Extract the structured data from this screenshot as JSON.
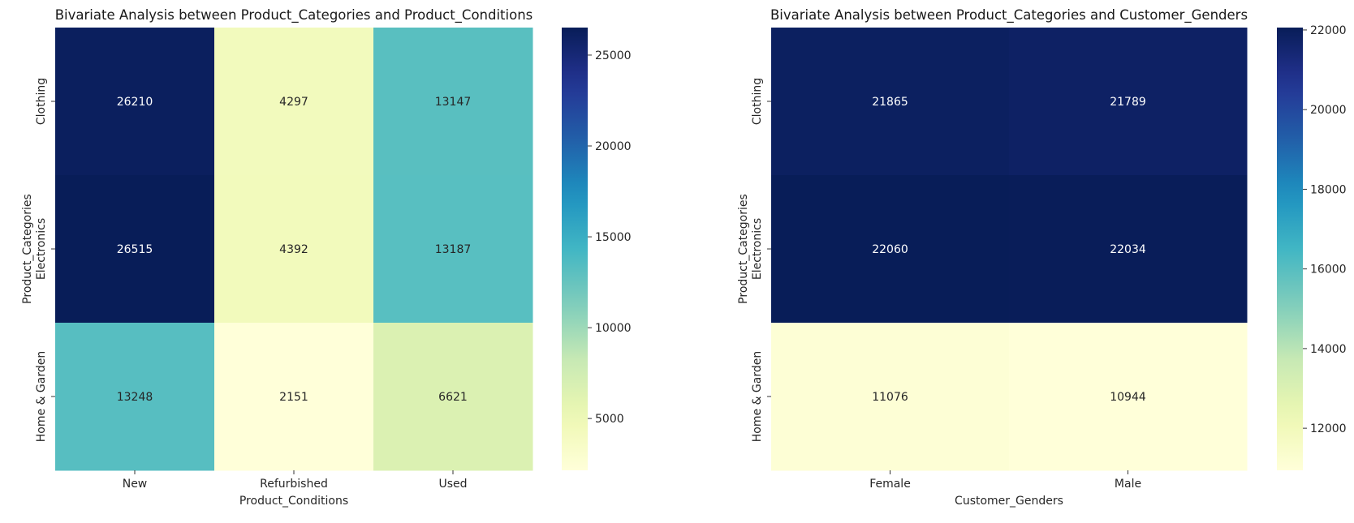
{
  "chart_data": [
    {
      "type": "heatmap",
      "title": "Bivariate Analysis between Product_Categories and Product_Conditions",
      "xlabel": "Product_Conditions",
      "ylabel": "Product_Categories",
      "x_categories": [
        "New",
        "Refurbished",
        "Used"
      ],
      "y_categories": [
        "Clothing",
        "Electronics",
        "Home & Garden"
      ],
      "values": [
        [
          26210,
          4297,
          13147
        ],
        [
          26515,
          4392,
          13187
        ],
        [
          13248,
          2151,
          6621
        ]
      ],
      "colormap": "YlGnBu",
      "colorbar_range": [
        2151,
        26515
      ],
      "colorbar_ticks": [
        5000,
        10000,
        15000,
        20000,
        25000
      ]
    },
    {
      "type": "heatmap",
      "title": "Bivariate Analysis between Product_Categories and Customer_Genders",
      "xlabel": "Customer_Genders",
      "ylabel": "Product_Categories",
      "x_categories": [
        "Female",
        "Male"
      ],
      "y_categories": [
        "Clothing",
        "Electronics",
        "Home & Garden"
      ],
      "values": [
        [
          21865,
          21789
        ],
        [
          22060,
          22034
        ],
        [
          11076,
          10944
        ]
      ],
      "colormap": "YlGnBu",
      "colorbar_range": [
        10944,
        22060
      ],
      "colorbar_ticks": [
        12000,
        14000,
        16000,
        18000,
        20000,
        22000
      ]
    }
  ]
}
